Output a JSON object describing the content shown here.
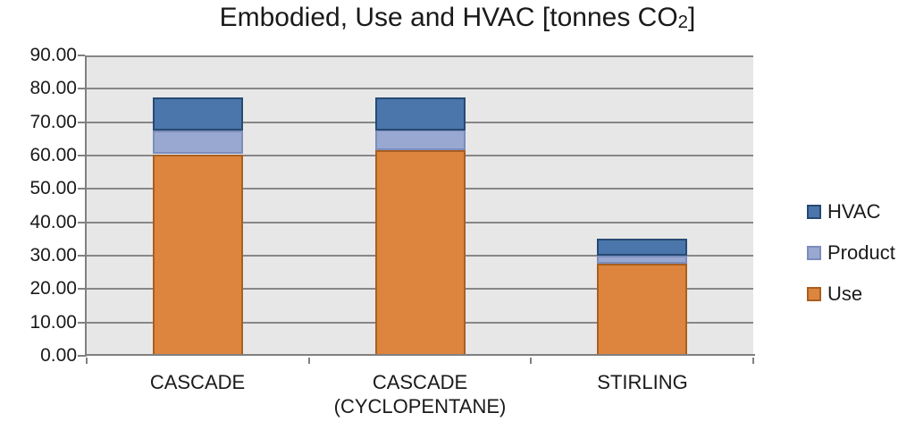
{
  "title": {
    "prefix": "Embodied, Use and HVAC [tonnes CO",
    "subscript": "2",
    "suffix": "]"
  },
  "colors": {
    "background": "#FFFFFF",
    "plot_background": "#E7E7E7",
    "gridline": "#878787",
    "axis": "#808080",
    "text": "#1A1A1A"
  },
  "y_axis": {
    "tick_labels": [
      "90.00",
      "80.00",
      "70.00",
      "60.00",
      "50.00",
      "40.00",
      "30.00",
      "20.00",
      "10.00",
      "0.00"
    ]
  },
  "legend": [
    {
      "label": "HVAC",
      "fill": "#4A76AB",
      "border": "#274A73"
    },
    {
      "label": "Product",
      "fill": "#98A8D1",
      "border": "#7C8DBC"
    },
    {
      "label": "Use",
      "fill": "#DD853E",
      "border": "#A95F20"
    }
  ],
  "chart_data": {
    "type": "bar",
    "stacked": true,
    "title": "Embodied, Use and HVAC [tonnes CO2]",
    "categories": [
      "CASCADE",
      "CASCADE (CYCLOPENTANE)",
      "STIRLING"
    ],
    "category_label_lines": [
      [
        "CASCADE"
      ],
      [
        "CASCADE",
        "(CYCLOPENTANE)"
      ],
      [
        "STIRLING"
      ]
    ],
    "series": [
      {
        "name": "Use",
        "values": [
          60.4,
          61.6,
          27.5
        ],
        "fill": "#DD853E",
        "border": "#A95F20"
      },
      {
        "name": "Product",
        "values": [
          7.0,
          6.1,
          2.4
        ],
        "fill": "#98A8D1",
        "border": "#7C8DBC"
      },
      {
        "name": "HVAC",
        "values": [
          9.9,
          9.8,
          5.1
        ],
        "fill": "#4A76AB",
        "border": "#274A73"
      }
    ],
    "totals": [
      77.3,
      77.5,
      35.0
    ],
    "xlabel": "",
    "ylabel": "",
    "ylim": [
      0,
      90
    ],
    "y_step": 10,
    "grid": true,
    "legend_position": "right"
  }
}
